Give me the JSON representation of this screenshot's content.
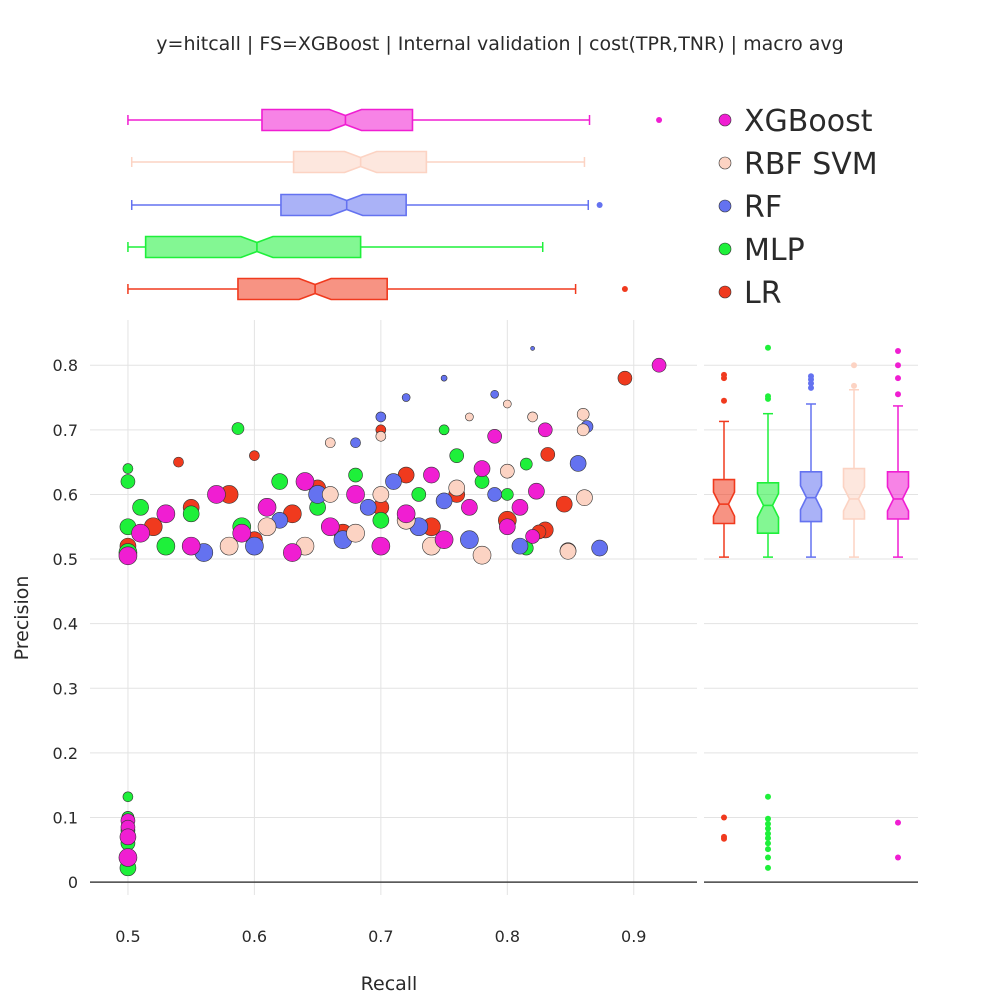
{
  "chart_data": {
    "type": "scatter",
    "title": "y=hitcall | FS=XGBoost | Internal validation | cost(TPR,TNR) | macro avg",
    "xlabel": "Recall",
    "ylabel": "Precision",
    "xlim": [
      0.47,
      0.95
    ],
    "ylim": [
      -0.02,
      0.87
    ],
    "x_ticks": [
      {
        "value": 0.5,
        "label": "0.5"
      },
      {
        "value": 0.6,
        "label": "0.6"
      },
      {
        "value": 0.7,
        "label": "0.7"
      },
      {
        "value": 0.8,
        "label": "0.8"
      },
      {
        "value": 0.9,
        "label": "0.9"
      }
    ],
    "y_ticks": [
      {
        "value": 0,
        "label": "0"
      },
      {
        "value": 0.1,
        "label": "0.1"
      },
      {
        "value": 0.2,
        "label": "0.2"
      },
      {
        "value": 0.3,
        "label": "0.3"
      },
      {
        "value": 0.4,
        "label": "0.4"
      },
      {
        "value": 0.5,
        "label": "0.5"
      },
      {
        "value": 0.6,
        "label": "0.6"
      },
      {
        "value": 0.7,
        "label": "0.7"
      },
      {
        "value": 0.8,
        "label": "0.8"
      }
    ],
    "grid": true,
    "legend_position": "top-right",
    "series": [
      {
        "name": "LR",
        "color": "#f03a1e",
        "recall_box": {
          "min": 0.5,
          "q1": 0.587,
          "median": 0.648,
          "q3": 0.705,
          "max": 0.854,
          "outliers": [
            0.893
          ]
        },
        "precision_box": {
          "min": 0.503,
          "q1": 0.555,
          "median": 0.585,
          "q3": 0.623,
          "max": 0.713,
          "outliers": [
            0.785,
            0.78,
            0.745,
            0.1,
            0.07,
            0.067
          ]
        },
        "points": [
          [
            0.5,
            0.52,
            8
          ],
          [
            0.52,
            0.55,
            9
          ],
          [
            0.55,
            0.58,
            8
          ],
          [
            0.58,
            0.6,
            9
          ],
          [
            0.6,
            0.53,
            8
          ],
          [
            0.63,
            0.57,
            9
          ],
          [
            0.65,
            0.61,
            8
          ],
          [
            0.67,
            0.54,
            9
          ],
          [
            0.7,
            0.58,
            8
          ],
          [
            0.72,
            0.63,
            8
          ],
          [
            0.74,
            0.55,
            9
          ],
          [
            0.76,
            0.6,
            8
          ],
          [
            0.8,
            0.56,
            9
          ],
          [
            0.83,
            0.545,
            8
          ],
          [
            0.845,
            0.585,
            8
          ],
          [
            0.848,
            0.513,
            8
          ],
          [
            0.832,
            0.662,
            7
          ],
          [
            0.825,
            0.542,
            7
          ],
          [
            0.893,
            0.78,
            7
          ],
          [
            0.54,
            0.65,
            5
          ],
          [
            0.6,
            0.66,
            5
          ],
          [
            0.7,
            0.7,
            5
          ],
          [
            0.5,
            0.1,
            6
          ],
          [
            0.5,
            0.09,
            6
          ],
          [
            0.5,
            0.07,
            6
          ]
        ]
      },
      {
        "name": "MLP",
        "color": "#1ef03a",
        "recall_box": {
          "min": 0.5,
          "q1": 0.514,
          "median": 0.602,
          "q3": 0.684,
          "max": 0.828,
          "outliers": []
        },
        "precision_box": {
          "min": 0.503,
          "q1": 0.54,
          "median": 0.583,
          "q3": 0.618,
          "max": 0.725,
          "outliers": [
            0.827,
            0.752,
            0.748,
            0.132,
            0.098,
            0.09,
            0.083,
            0.075,
            0.068,
            0.06,
            0.051,
            0.038,
            0.022
          ]
        },
        "points": [
          [
            0.5,
            0.51,
            9
          ],
          [
            0.5,
            0.55,
            8
          ],
          [
            0.51,
            0.58,
            8
          ],
          [
            0.5,
            0.62,
            7
          ],
          [
            0.5,
            0.64,
            5
          ],
          [
            0.53,
            0.52,
            9
          ],
          [
            0.55,
            0.57,
            8
          ],
          [
            0.57,
            0.6,
            8
          ],
          [
            0.59,
            0.55,
            9
          ],
          [
            0.62,
            0.62,
            8
          ],
          [
            0.65,
            0.58,
            8
          ],
          [
            0.68,
            0.63,
            7
          ],
          [
            0.7,
            0.56,
            8
          ],
          [
            0.73,
            0.6,
            7
          ],
          [
            0.76,
            0.66,
            7
          ],
          [
            0.78,
            0.62,
            7
          ],
          [
            0.8,
            0.6,
            6
          ],
          [
            0.815,
            0.517,
            7
          ],
          [
            0.815,
            0.647,
            6
          ],
          [
            0.587,
            0.702,
            6
          ],
          [
            0.75,
            0.7,
            5
          ],
          [
            0.5,
            0.132,
            5
          ],
          [
            0.5,
            0.1,
            6
          ],
          [
            0.5,
            0.08,
            7
          ],
          [
            0.5,
            0.06,
            7
          ],
          [
            0.5,
            0.04,
            7
          ],
          [
            0.5,
            0.022,
            8
          ]
        ]
      },
      {
        "name": "RF",
        "color": "#6472f0",
        "recall_box": {
          "min": 0.503,
          "q1": 0.621,
          "median": 0.673,
          "q3": 0.72,
          "max": 0.864,
          "outliers": [
            0.873
          ]
        },
        "precision_box": {
          "min": 0.503,
          "q1": 0.558,
          "median": 0.595,
          "q3": 0.635,
          "max": 0.74,
          "outliers": [
            0.783,
            0.778,
            0.772,
            0.765
          ]
        },
        "points": [
          [
            0.56,
            0.51,
            9
          ],
          [
            0.6,
            0.52,
            9
          ],
          [
            0.62,
            0.56,
            8
          ],
          [
            0.65,
            0.6,
            9
          ],
          [
            0.67,
            0.53,
            9
          ],
          [
            0.69,
            0.58,
            8
          ],
          [
            0.71,
            0.62,
            8
          ],
          [
            0.73,
            0.55,
            9
          ],
          [
            0.75,
            0.59,
            8
          ],
          [
            0.77,
            0.53,
            9
          ],
          [
            0.79,
            0.6,
            7
          ],
          [
            0.81,
            0.52,
            8
          ],
          [
            0.856,
            0.648,
            8
          ],
          [
            0.873,
            0.517,
            8
          ],
          [
            0.863,
            0.705,
            6
          ],
          [
            0.7,
            0.72,
            5
          ],
          [
            0.72,
            0.75,
            4
          ],
          [
            0.75,
            0.78,
            3
          ],
          [
            0.79,
            0.755,
            4
          ],
          [
            0.82,
            0.826,
            2
          ],
          [
            0.68,
            0.68,
            5
          ]
        ]
      },
      {
        "name": "RBF SVM",
        "color": "#fcd3c3",
        "recall_box": {
          "min": 0.503,
          "q1": 0.631,
          "median": 0.684,
          "q3": 0.736,
          "max": 0.861,
          "outliers": []
        },
        "precision_box": {
          "min": 0.503,
          "q1": 0.562,
          "median": 0.593,
          "q3": 0.64,
          "max": 0.762,
          "outliers": [
            0.8,
            0.768
          ]
        },
        "points": [
          [
            0.58,
            0.52,
            9
          ],
          [
            0.61,
            0.55,
            9
          ],
          [
            0.64,
            0.52,
            9
          ],
          [
            0.66,
            0.6,
            8
          ],
          [
            0.68,
            0.54,
            9
          ],
          [
            0.7,
            0.6,
            8
          ],
          [
            0.72,
            0.56,
            9
          ],
          [
            0.74,
            0.52,
            9
          ],
          [
            0.76,
            0.61,
            8
          ],
          [
            0.78,
            0.506,
            9
          ],
          [
            0.8,
            0.636,
            7
          ],
          [
            0.86,
            0.724,
            6
          ],
          [
            0.86,
            0.7,
            6
          ],
          [
            0.861,
            0.595,
            8
          ],
          [
            0.848,
            0.512,
            8
          ],
          [
            0.7,
            0.69,
            5
          ],
          [
            0.66,
            0.68,
            5
          ],
          [
            0.77,
            0.72,
            4
          ],
          [
            0.8,
            0.74,
            4
          ],
          [
            0.82,
            0.72,
            5
          ]
        ]
      },
      {
        "name": "XGBoost",
        "color": "#f01ed2",
        "recall_box": {
          "min": 0.5,
          "q1": 0.606,
          "median": 0.672,
          "q3": 0.725,
          "max": 0.865,
          "outliers": [
            0.92
          ]
        },
        "precision_box": {
          "min": 0.503,
          "q1": 0.562,
          "median": 0.593,
          "q3": 0.635,
          "max": 0.737,
          "outliers": [
            0.822,
            0.8,
            0.78,
            0.755,
            0.092,
            0.038
          ]
        },
        "points": [
          [
            0.5,
            0.505,
            9
          ],
          [
            0.51,
            0.54,
            9
          ],
          [
            0.53,
            0.57,
            9
          ],
          [
            0.55,
            0.52,
            9
          ],
          [
            0.57,
            0.6,
            9
          ],
          [
            0.59,
            0.54,
            9
          ],
          [
            0.61,
            0.58,
            9
          ],
          [
            0.63,
            0.51,
            9
          ],
          [
            0.64,
            0.62,
            9
          ],
          [
            0.66,
            0.55,
            9
          ],
          [
            0.68,
            0.6,
            9
          ],
          [
            0.7,
            0.52,
            9
          ],
          [
            0.72,
            0.57,
            9
          ],
          [
            0.74,
            0.63,
            8
          ],
          [
            0.75,
            0.53,
            9
          ],
          [
            0.77,
            0.58,
            8
          ],
          [
            0.78,
            0.64,
            8
          ],
          [
            0.79,
            0.69,
            7
          ],
          [
            0.8,
            0.55,
            8
          ],
          [
            0.81,
            0.58,
            8
          ],
          [
            0.823,
            0.605,
            8
          ],
          [
            0.83,
            0.7,
            7
          ],
          [
            0.82,
            0.535,
            7
          ],
          [
            0.92,
            0.8,
            7
          ],
          [
            0.5,
            0.095,
            7
          ],
          [
            0.5,
            0.085,
            7
          ],
          [
            0.5,
            0.07,
            8
          ],
          [
            0.5,
            0.038,
            9
          ]
        ]
      }
    ]
  }
}
